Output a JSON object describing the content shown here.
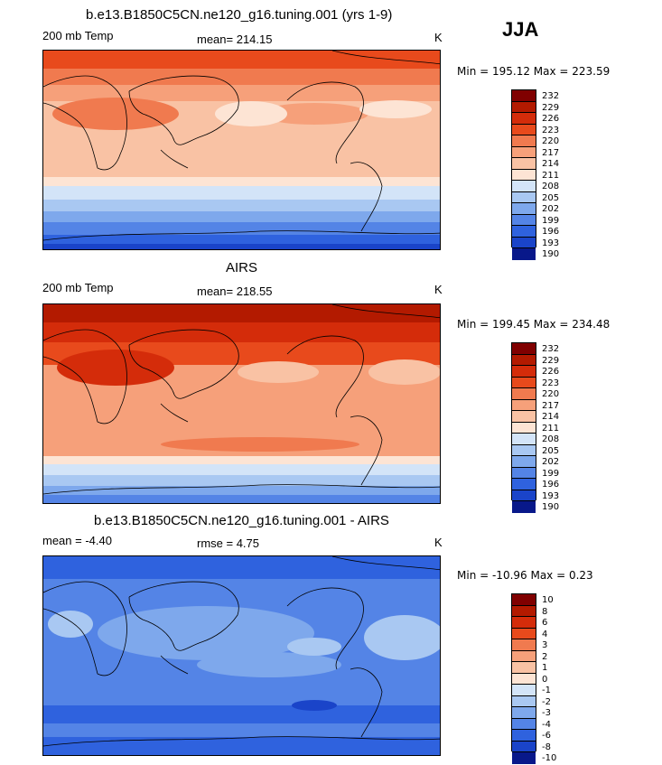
{
  "season": "JJA",
  "units": "K",
  "panels": [
    {
      "title": "b.e13.B1850C5CN.ne120_g16.tuning.001 (yrs 1-9)",
      "left_label": "200 mb Temp",
      "stat_label": "mean= 214.15",
      "right_label": "K",
      "minmax": "Min = 195.12 Max = 223.59",
      "colorbar_labels": [
        "232",
        "229",
        "226",
        "223",
        "220",
        "217",
        "214",
        "211",
        "208",
        "205",
        "202",
        "199",
        "196",
        "193",
        "190"
      ]
    },
    {
      "title": "AIRS",
      "left_label": "200 mb Temp",
      "stat_label": "mean= 218.55",
      "right_label": "K",
      "minmax": "Min = 199.45 Max = 234.48",
      "colorbar_labels": [
        "232",
        "229",
        "226",
        "223",
        "220",
        "217",
        "214",
        "211",
        "208",
        "205",
        "202",
        "199",
        "196",
        "193",
        "190"
      ]
    },
    {
      "title": "b.e13.B1850C5CN.ne120_g16.tuning.001 - AIRS",
      "left_label": "mean =   -4.40",
      "stat_label": "rmse =    4.75",
      "right_label": "K",
      "minmax": "Min = -10.96 Max =    0.23",
      "colorbar_labels": [
        "10",
        "8",
        "6",
        "4",
        "3",
        "2",
        "1",
        "0",
        "-1",
        "-2",
        "-3",
        "-4",
        "-6",
        "-8",
        "-10"
      ]
    }
  ],
  "colors": {
    "warm_scale": [
      "#800000",
      "#b31a00",
      "#d42c0a",
      "#e84a1c",
      "#f07a4f",
      "#f6a07a",
      "#f9c2a4",
      "#fde4d4",
      "#d3e4f8",
      "#a9c8f2",
      "#7ea8ec",
      "#5484e6",
      "#2f62de",
      "#1a44c9",
      "#08188a"
    ],
    "land_outline": "#000000"
  },
  "chart_data": [
    {
      "type": "heatmap",
      "title": "b.e13.B1850C5CN.ne120_g16.tuning.001 (yrs 1-9)",
      "variable": "200 mb Temp",
      "units": "K",
      "mean": 214.15,
      "min": 195.12,
      "max": 223.59,
      "levels": [
        190,
        193,
        196,
        199,
        202,
        205,
        208,
        211,
        214,
        217,
        220,
        223,
        226,
        229,
        232
      ]
    },
    {
      "type": "heatmap",
      "title": "AIRS",
      "variable": "200 mb Temp",
      "units": "K",
      "mean": 218.55,
      "min": 199.45,
      "max": 234.48,
      "levels": [
        190,
        193,
        196,
        199,
        202,
        205,
        208,
        211,
        214,
        217,
        220,
        223,
        226,
        229,
        232
      ]
    },
    {
      "type": "heatmap",
      "title": "b.e13.B1850C5CN.ne120_g16.tuning.001 - AIRS",
      "units": "K",
      "mean": -4.4,
      "rmse": 4.75,
      "min": -10.96,
      "max": 0.23,
      "levels": [
        -10,
        -8,
        -6,
        -4,
        -3,
        -2,
        -1,
        0,
        1,
        2,
        3,
        4,
        6,
        8,
        10
      ]
    }
  ]
}
